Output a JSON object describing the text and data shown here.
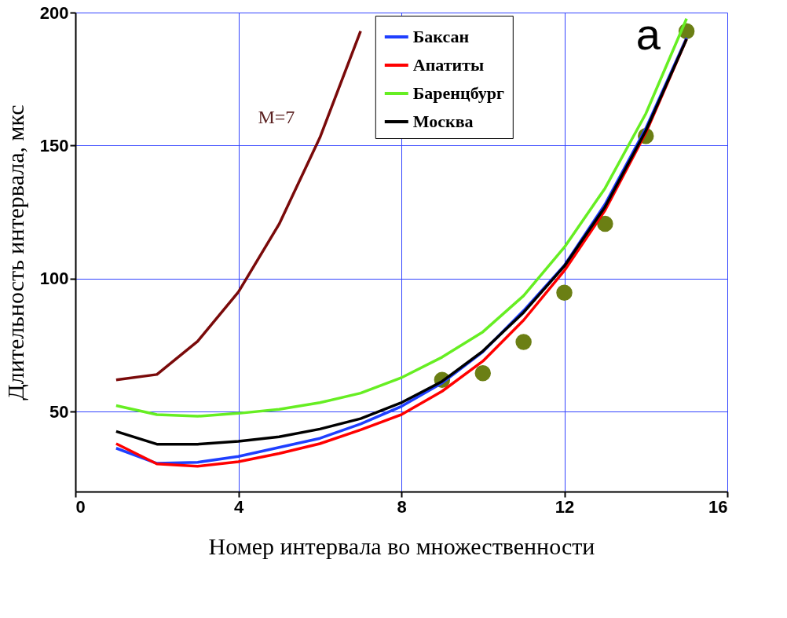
{
  "chart_data": {
    "type": "line",
    "xlabel": "Номер интервала во множественности",
    "ylabel": "Длительность интервала, мкс",
    "x": [
      1,
      2,
      3,
      4,
      5,
      6,
      7,
      8,
      9,
      10,
      11,
      12,
      13,
      14,
      15
    ],
    "series": [
      {
        "color": "#7a0a0a",
        "x": [
          1,
          2,
          3,
          4,
          5,
          6,
          7
        ],
        "values": [
          62,
          64,
          76.5,
          95,
          120.5,
          153,
          193
        ]
      },
      {
        "name": "Баксан",
        "color": "#1f3fff",
        "values": [
          36.3,
          30.6,
          31,
          33.2,
          36.6,
          40,
          45.4,
          52,
          60.8,
          72.5,
          88,
          105,
          128,
          156.5,
          190.5
        ]
      },
      {
        "name": "Апатиты",
        "color": "#ff0000",
        "values": [
          38,
          30.4,
          29.5,
          31.2,
          34.3,
          38,
          43.2,
          48.9,
          57.7,
          69,
          84.4,
          103,
          125.7,
          154.8,
          190
        ]
      },
      {
        "name": "Баренцбург",
        "color": "#66ee22",
        "values": [
          52.3,
          48.9,
          48.3,
          49.4,
          50.9,
          53.4,
          57,
          62.8,
          70.5,
          80,
          93.6,
          111.8,
          134,
          162,
          197.7
        ]
      },
      {
        "name": "Москва",
        "color": "#000000",
        "values": [
          42.6,
          37.8,
          37.8,
          38.9,
          40.6,
          43.5,
          47.4,
          53.4,
          61.4,
          72.8,
          87.3,
          104.7,
          127,
          155.6,
          190
        ]
      },
      {
        "type": "scatter",
        "color": "#6b7f14",
        "marker": "circle",
        "x": [
          9,
          10,
          11,
          12,
          13,
          14,
          15
        ],
        "values": [
          62,
          64.5,
          76.2,
          94.7,
          120.6,
          153.6,
          193
        ]
      }
    ],
    "xlim": [
      0,
      16
    ],
    "xticks": [
      0,
      4,
      8,
      12,
      16
    ],
    "ylim": [
      20,
      200
    ],
    "yticks": [
      50,
      100,
      150,
      200
    ],
    "grid": true,
    "legend": "top right",
    "line_style": "solid",
    "annotations": [
      "M=7",
      "а"
    ]
  }
}
